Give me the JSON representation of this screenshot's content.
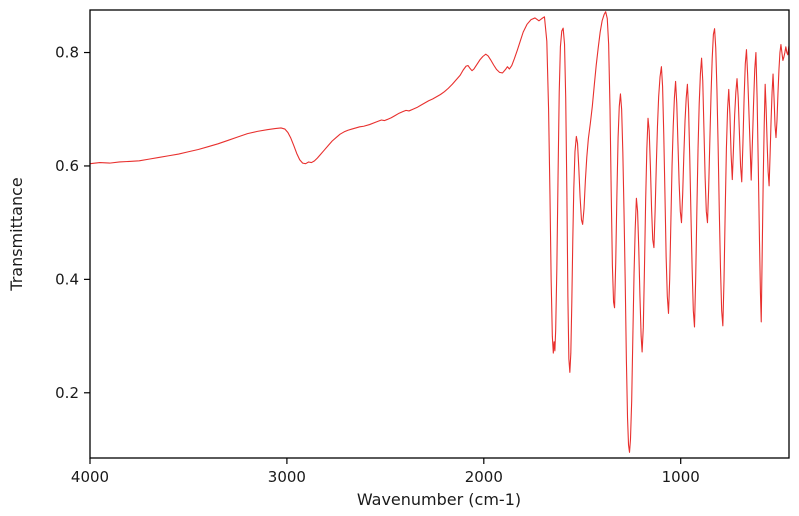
{
  "chart_data": {
    "type": "line",
    "title": "",
    "xlabel": "Wavenumber (cm-1)",
    "ylabel": "Transmittance",
    "x_ticks": [
      4000,
      3000,
      2000,
      1000
    ],
    "x_tick_labels": [
      "4000",
      "3000",
      "2000",
      "1000"
    ],
    "y_ticks": [
      0.2,
      0.4,
      0.6,
      0.8
    ],
    "y_tick_labels": [
      "0.2",
      "0.4",
      "0.6",
      "0.8"
    ],
    "xlim": [
      4000,
      450
    ],
    "ylim": [
      0.085,
      0.875
    ],
    "x_axis_reversed": true,
    "grid": false,
    "legend": "none",
    "line_color": "#e8302e",
    "axis_color": "#000000",
    "background_color": "#ffffff",
    "points": [
      [
        4000,
        0.604
      ],
      [
        3950,
        0.606
      ],
      [
        3900,
        0.605
      ],
      [
        3850,
        0.607
      ],
      [
        3800,
        0.608
      ],
      [
        3750,
        0.609
      ],
      [
        3700,
        0.612
      ],
      [
        3650,
        0.615
      ],
      [
        3600,
        0.618
      ],
      [
        3550,
        0.621
      ],
      [
        3500,
        0.625
      ],
      [
        3450,
        0.629
      ],
      [
        3400,
        0.634
      ],
      [
        3350,
        0.639
      ],
      [
        3300,
        0.645
      ],
      [
        3250,
        0.651
      ],
      [
        3200,
        0.657
      ],
      [
        3150,
        0.661
      ],
      [
        3100,
        0.664
      ],
      [
        3060,
        0.666
      ],
      [
        3030,
        0.667
      ],
      [
        3010,
        0.665
      ],
      [
        2995,
        0.659
      ],
      [
        2980,
        0.649
      ],
      [
        2965,
        0.636
      ],
      [
        2950,
        0.622
      ],
      [
        2935,
        0.611
      ],
      [
        2920,
        0.605
      ],
      [
        2905,
        0.604
      ],
      [
        2890,
        0.607
      ],
      [
        2875,
        0.606
      ],
      [
        2860,
        0.609
      ],
      [
        2845,
        0.614
      ],
      [
        2830,
        0.62
      ],
      [
        2810,
        0.628
      ],
      [
        2790,
        0.636
      ],
      [
        2770,
        0.644
      ],
      [
        2750,
        0.65
      ],
      [
        2730,
        0.656
      ],
      [
        2710,
        0.66
      ],
      [
        2690,
        0.663
      ],
      [
        2670,
        0.665
      ],
      [
        2650,
        0.667
      ],
      [
        2630,
        0.669
      ],
      [
        2610,
        0.67
      ],
      [
        2580,
        0.673
      ],
      [
        2550,
        0.677
      ],
      [
        2520,
        0.681
      ],
      [
        2505,
        0.68
      ],
      [
        2490,
        0.682
      ],
      [
        2470,
        0.685
      ],
      [
        2450,
        0.689
      ],
      [
        2430,
        0.693
      ],
      [
        2410,
        0.696
      ],
      [
        2395,
        0.698
      ],
      [
        2380,
        0.697
      ],
      [
        2360,
        0.7
      ],
      [
        2340,
        0.703
      ],
      [
        2320,
        0.707
      ],
      [
        2300,
        0.711
      ],
      [
        2280,
        0.715
      ],
      [
        2260,
        0.718
      ],
      [
        2240,
        0.722
      ],
      [
        2220,
        0.726
      ],
      [
        2200,
        0.731
      ],
      [
        2180,
        0.737
      ],
      [
        2160,
        0.744
      ],
      [
        2140,
        0.752
      ],
      [
        2120,
        0.76
      ],
      [
        2105,
        0.769
      ],
      [
        2090,
        0.776
      ],
      [
        2080,
        0.777
      ],
      [
        2070,
        0.772
      ],
      [
        2060,
        0.768
      ],
      [
        2050,
        0.771
      ],
      [
        2035,
        0.779
      ],
      [
        2020,
        0.787
      ],
      [
        2005,
        0.793
      ],
      [
        1990,
        0.797
      ],
      [
        1978,
        0.794
      ],
      [
        1965,
        0.787
      ],
      [
        1950,
        0.778
      ],
      [
        1935,
        0.77
      ],
      [
        1920,
        0.765
      ],
      [
        1905,
        0.764
      ],
      [
        1890,
        0.77
      ],
      [
        1880,
        0.775
      ],
      [
        1870,
        0.771
      ],
      [
        1858,
        0.777
      ],
      [
        1845,
        0.789
      ],
      [
        1830,
        0.804
      ],
      [
        1815,
        0.82
      ],
      [
        1800,
        0.836
      ],
      [
        1780,
        0.85
      ],
      [
        1760,
        0.858
      ],
      [
        1740,
        0.861
      ],
      [
        1720,
        0.856
      ],
      [
        1705,
        0.86
      ],
      [
        1692,
        0.863
      ],
      [
        1680,
        0.82
      ],
      [
        1671,
        0.7
      ],
      [
        1664,
        0.55
      ],
      [
        1658,
        0.4
      ],
      [
        1652,
        0.3
      ],
      [
        1647,
        0.27
      ],
      [
        1643,
        0.29
      ],
      [
        1639,
        0.274
      ],
      [
        1635,
        0.31
      ],
      [
        1629,
        0.42
      ],
      [
        1623,
        0.58
      ],
      [
        1617,
        0.73
      ],
      [
        1611,
        0.81
      ],
      [
        1604,
        0.838
      ],
      [
        1597,
        0.843
      ],
      [
        1590,
        0.815
      ],
      [
        1584,
        0.72
      ],
      [
        1578,
        0.55
      ],
      [
        1573,
        0.37
      ],
      [
        1568,
        0.26
      ],
      [
        1563,
        0.236
      ],
      [
        1558,
        0.27
      ],
      [
        1553,
        0.36
      ],
      [
        1548,
        0.47
      ],
      [
        1543,
        0.56
      ],
      [
        1537,
        0.625
      ],
      [
        1530,
        0.652
      ],
      [
        1524,
        0.64
      ],
      [
        1518,
        0.6
      ],
      [
        1511,
        0.545
      ],
      [
        1504,
        0.505
      ],
      [
        1498,
        0.497
      ],
      [
        1491,
        0.525
      ],
      [
        1484,
        0.575
      ],
      [
        1477,
        0.615
      ],
      [
        1469,
        0.648
      ],
      [
        1459,
        0.675
      ],
      [
        1449,
        0.705
      ],
      [
        1439,
        0.742
      ],
      [
        1429,
        0.778
      ],
      [
        1419,
        0.808
      ],
      [
        1409,
        0.836
      ],
      [
        1399,
        0.856
      ],
      [
        1389,
        0.867
      ],
      [
        1381,
        0.872
      ],
      [
        1373,
        0.86
      ],
      [
        1366,
        0.815
      ],
      [
        1359,
        0.7
      ],
      [
        1353,
        0.555
      ],
      [
        1347,
        0.425
      ],
      [
        1341,
        0.36
      ],
      [
        1336,
        0.35
      ],
      [
        1330,
        0.43
      ],
      [
        1324,
        0.55
      ],
      [
        1318,
        0.65
      ],
      [
        1312,
        0.705
      ],
      [
        1306,
        0.727
      ],
      [
        1300,
        0.7
      ],
      [
        1294,
        0.625
      ],
      [
        1288,
        0.52
      ],
      [
        1282,
        0.4
      ],
      [
        1276,
        0.26
      ],
      [
        1270,
        0.155
      ],
      [
        1265,
        0.108
      ],
      [
        1260,
        0.095
      ],
      [
        1255,
        0.118
      ],
      [
        1249,
        0.185
      ],
      [
        1243,
        0.3
      ],
      [
        1237,
        0.41
      ],
      [
        1231,
        0.49
      ],
      [
        1225,
        0.543
      ],
      [
        1219,
        0.52
      ],
      [
        1213,
        0.455
      ],
      [
        1207,
        0.37
      ],
      [
        1201,
        0.3
      ],
      [
        1196,
        0.272
      ],
      [
        1190,
        0.315
      ],
      [
        1184,
        0.42
      ],
      [
        1178,
        0.54
      ],
      [
        1172,
        0.63
      ],
      [
        1166,
        0.684
      ],
      [
        1160,
        0.662
      ],
      [
        1154,
        0.6
      ],
      [
        1148,
        0.525
      ],
      [
        1142,
        0.47
      ],
      [
        1136,
        0.456
      ],
      [
        1130,
        0.52
      ],
      [
        1124,
        0.6
      ],
      [
        1118,
        0.67
      ],
      [
        1112,
        0.722
      ],
      [
        1105,
        0.757
      ],
      [
        1098,
        0.775
      ],
      [
        1092,
        0.74
      ],
      [
        1086,
        0.655
      ],
      [
        1080,
        0.55
      ],
      [
        1074,
        0.44
      ],
      [
        1068,
        0.37
      ],
      [
        1062,
        0.34
      ],
      [
        1056,
        0.4
      ],
      [
        1050,
        0.5
      ],
      [
        1044,
        0.6
      ],
      [
        1038,
        0.67
      ],
      [
        1032,
        0.72
      ],
      [
        1026,
        0.749
      ],
      [
        1020,
        0.71
      ],
      [
        1014,
        0.64
      ],
      [
        1008,
        0.57
      ],
      [
        1002,
        0.52
      ],
      [
        996,
        0.5
      ],
      [
        990,
        0.55
      ],
      [
        984,
        0.62
      ],
      [
        978,
        0.68
      ],
      [
        972,
        0.72
      ],
      [
        966,
        0.744
      ],
      [
        960,
        0.7
      ],
      [
        954,
        0.615
      ],
      [
        948,
        0.515
      ],
      [
        942,
        0.42
      ],
      [
        936,
        0.345
      ],
      [
        930,
        0.316
      ],
      [
        924,
        0.4
      ],
      [
        918,
        0.52
      ],
      [
        912,
        0.63
      ],
      [
        906,
        0.71
      ],
      [
        900,
        0.762
      ],
      [
        894,
        0.79
      ],
      [
        888,
        0.75
      ],
      [
        882,
        0.665
      ],
      [
        876,
        0.58
      ],
      [
        870,
        0.52
      ],
      [
        864,
        0.5
      ],
      [
        858,
        0.56
      ],
      [
        852,
        0.645
      ],
      [
        846,
        0.725
      ],
      [
        840,
        0.79
      ],
      [
        834,
        0.832
      ],
      [
        828,
        0.842
      ],
      [
        822,
        0.808
      ],
      [
        816,
        0.735
      ],
      [
        810,
        0.635
      ],
      [
        804,
        0.52
      ],
      [
        798,
        0.42
      ],
      [
        792,
        0.345
      ],
      [
        786,
        0.318
      ],
      [
        780,
        0.4
      ],
      [
        774,
        0.52
      ],
      [
        768,
        0.63
      ],
      [
        762,
        0.7
      ],
      [
        756,
        0.735
      ],
      [
        750,
        0.69
      ],
      [
        744,
        0.62
      ],
      [
        738,
        0.576
      ],
      [
        732,
        0.63
      ],
      [
        726,
        0.69
      ],
      [
        720,
        0.73
      ],
      [
        714,
        0.754
      ],
      [
        708,
        0.72
      ],
      [
        702,
        0.66
      ],
      [
        696,
        0.6
      ],
      [
        690,
        0.572
      ],
      [
        684,
        0.64
      ],
      [
        678,
        0.72
      ],
      [
        672,
        0.78
      ],
      [
        666,
        0.805
      ],
      [
        660,
        0.76
      ],
      [
        654,
        0.7
      ],
      [
        648,
        0.64
      ],
      [
        642,
        0.575
      ],
      [
        636,
        0.64
      ],
      [
        630,
        0.71
      ],
      [
        624,
        0.77
      ],
      [
        618,
        0.8
      ],
      [
        612,
        0.72
      ],
      [
        606,
        0.6
      ],
      [
        600,
        0.47
      ],
      [
        595,
        0.375
      ],
      [
        591,
        0.325
      ],
      [
        586,
        0.45
      ],
      [
        581,
        0.575
      ],
      [
        576,
        0.67
      ],
      [
        571,
        0.744
      ],
      [
        566,
        0.7
      ],
      [
        561,
        0.64
      ],
      [
        556,
        0.59
      ],
      [
        551,
        0.565
      ],
      [
        546,
        0.62
      ],
      [
        541,
        0.68
      ],
      [
        536,
        0.73
      ],
      [
        531,
        0.762
      ],
      [
        526,
        0.72
      ],
      [
        521,
        0.672
      ],
      [
        516,
        0.65
      ],
      [
        511,
        0.68
      ],
      [
        506,
        0.728
      ],
      [
        501,
        0.77
      ],
      [
        496,
        0.8
      ],
      [
        491,
        0.814
      ],
      [
        486,
        0.8
      ],
      [
        481,
        0.786
      ],
      [
        476,
        0.792
      ],
      [
        471,
        0.8
      ],
      [
        466,
        0.81
      ],
      [
        461,
        0.8
      ],
      [
        456,
        0.796
      ],
      [
        451,
        0.81
      ],
      [
        450,
        0.812
      ]
    ]
  }
}
